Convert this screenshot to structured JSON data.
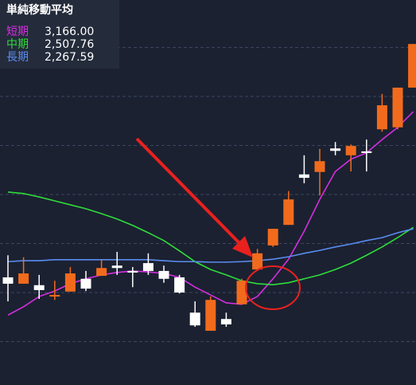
{
  "chart_data": {
    "type": "candlestick",
    "title": "単純移動平均",
    "ylim": [
      0,
      8
    ],
    "grid": true,
    "candles": {
      "up_color": "#f26b1d",
      "down_color": "#ffffff",
      "open": [
        2.31,
        2.18,
        2.15,
        1.92,
        2.02,
        2.28,
        2.34,
        2.55,
        2.44,
        2.6,
        2.44,
        2.31,
        1.59,
        1.22,
        1.46,
        1.76,
        2.47,
        2.96,
        3.38,
        4.41,
        4.46,
        4.94,
        4.8,
        4.88,
        5.33,
        5.37,
        6.18
      ],
      "high": [
        2.76,
        2.72,
        2.36,
        2.24,
        2.52,
        2.44,
        2.67,
        2.83,
        2.52,
        2.8,
        2.55,
        2.36,
        1.82,
        1.92,
        1.59,
        2.28,
        2.89,
        3.3,
        4.07,
        4.8,
        4.93,
        5.07,
        5.02,
        5.12,
        6.05,
        6.18,
        7.07
      ],
      "low": [
        1.82,
        2.18,
        1.87,
        1.85,
        2.02,
        2.03,
        2.34,
        2.36,
        2.11,
        2.36,
        2.2,
        1.98,
        1.3,
        1.22,
        1.3,
        1.76,
        2.44,
        2.93,
        3.38,
        4.23,
        3.98,
        4.8,
        4.47,
        4.47,
        5.28,
        5.33,
        6.18
      ],
      "close": [
        2.18,
        2.39,
        2.05,
        1.95,
        2.39,
        2.08,
        2.5,
        2.5,
        2.41,
        2.44,
        2.28,
        2.0,
        1.33,
        1.85,
        1.35,
        2.24,
        2.8,
        3.3,
        3.9,
        4.34,
        4.68,
        4.89,
        4.99,
        4.85,
        5.82,
        6.18,
        7.07
      ]
    },
    "series": [
      {
        "name": "短期",
        "color": "#d62ee0",
        "legend_value": 3166.0,
        "legend_value_label": "3,166.00",
        "values": [
          1.54,
          1.71,
          1.92,
          2.03,
          2.18,
          2.28,
          2.36,
          2.41,
          2.44,
          2.42,
          2.39,
          2.31,
          2.11,
          1.95,
          1.79,
          1.76,
          1.92,
          2.28,
          2.68,
          3.25,
          3.9,
          4.47,
          4.72,
          4.85,
          5.12,
          5.37,
          5.69
        ]
      },
      {
        "name": "中期",
        "color": "#2fdc3a",
        "legend_value": 2507.76,
        "legend_value_label": "2,507.76",
        "values": [
          4.05,
          4.02,
          3.95,
          3.87,
          3.79,
          3.71,
          3.61,
          3.5,
          3.37,
          3.22,
          3.06,
          2.85,
          2.63,
          2.47,
          2.36,
          2.24,
          2.18,
          2.16,
          2.2,
          2.28,
          2.36,
          2.47,
          2.6,
          2.76,
          2.93,
          3.12,
          3.33
        ]
      },
      {
        "name": "長期",
        "color": "#5a8cf0",
        "legend_value": 2267.59,
        "legend_value_label": "2,267.59",
        "values": [
          2.63,
          2.65,
          2.65,
          2.67,
          2.67,
          2.67,
          2.67,
          2.67,
          2.67,
          2.67,
          2.65,
          2.63,
          2.63,
          2.62,
          2.62,
          2.63,
          2.65,
          2.68,
          2.73,
          2.8,
          2.86,
          2.93,
          2.99,
          3.06,
          3.12,
          3.22,
          3.3
        ]
      }
    ]
  }
}
